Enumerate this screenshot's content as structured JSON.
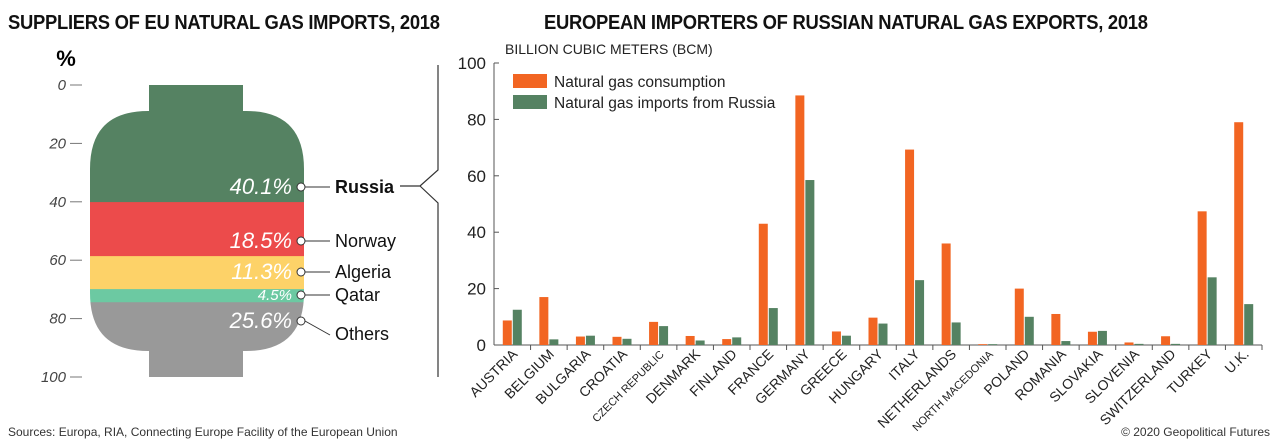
{
  "left_title": "SUPPLIERS OF EU NATURAL GAS IMPORTS, 2018",
  "right_title": "EUROPEAN IMPORTERS OF RUSSIAN NATURAL GAS EXPORTS, 2018",
  "footer": {
    "sources": "Sources: Europa, RIA, Connecting Europe Facility of the European Union",
    "copyright": "© 2020 Geopolitical Futures"
  },
  "chart_data": [
    {
      "type": "bar",
      "title": "SUPPLIERS OF EU NATURAL GAS IMPORTS, 2018",
      "ylabel": "%",
      "ylim": [
        0,
        100
      ],
      "yticks": [
        "0",
        "20",
        "40",
        "60",
        "80",
        "100"
      ],
      "categories": [
        "Russia",
        "Norway",
        "Algeria",
        "Qatar",
        "Others"
      ],
      "values": [
        40.1,
        18.5,
        11.3,
        4.5,
        25.6
      ],
      "value_labels": [
        "40.1%",
        "18.5%",
        "11.3%",
        "4.5%",
        "25.6%"
      ],
      "colors": [
        "#558262",
        "#ec4b4b",
        "#fdd268",
        "#6cc9a2",
        "#999999"
      ]
    },
    {
      "type": "bar",
      "title": "EUROPEAN IMPORTERS OF RUSSIAN NATURAL GAS EXPORTS, 2018",
      "ylabel": "BILLION CUBIC METERS (BCM)",
      "ylim": [
        0,
        100
      ],
      "yticks": [
        "0",
        "20",
        "40",
        "60",
        "80",
        "100"
      ],
      "legend": "top-left",
      "categories": [
        "AUSTRIA",
        "BELGIUM",
        "BULGARIA",
        "CROATIA",
        "CZECH REPUBLIC",
        "DENMARK",
        "FINLAND",
        "FRANCE",
        "GERMANY",
        "GREECE",
        "HUNGARY",
        "ITALY",
        "NETHERLANDS",
        "NORTH MACEDONIA",
        "POLAND",
        "ROMANIA",
        "SLOVAKIA",
        "SLOVENIA",
        "SWITZERLAND",
        "TURKEY",
        "U.K."
      ],
      "series": [
        {
          "name": "Natural gas consumption",
          "color": "#f26522",
          "values": [
            8.7,
            17.0,
            3.0,
            2.9,
            8.2,
            3.2,
            2.1,
            43.0,
            88.5,
            4.8,
            9.7,
            69.3,
            36.0,
            0.3,
            20.0,
            11.0,
            4.7,
            0.9,
            3.1,
            47.4,
            79.0
          ]
        },
        {
          "name": "Natural gas imports from Russia",
          "color": "#558262",
          "values": [
            12.5,
            2.0,
            3.3,
            2.2,
            6.7,
            1.6,
            2.7,
            13.1,
            58.5,
            3.3,
            7.6,
            23.0,
            8.0,
            0.3,
            10.0,
            1.4,
            5.0,
            0.4,
            0.4,
            24.0,
            14.5
          ]
        }
      ]
    }
  ]
}
